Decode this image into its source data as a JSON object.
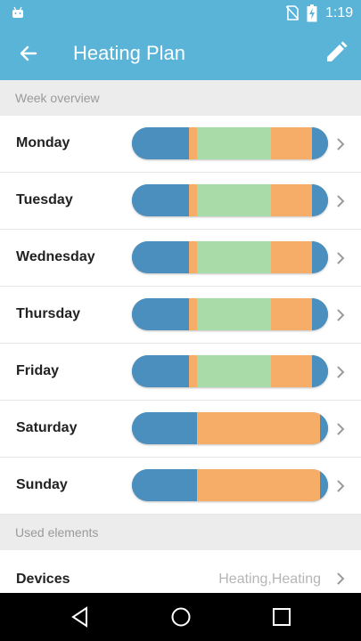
{
  "status_bar": {
    "time": "1:19",
    "icons": [
      "android-icon",
      "no-sim-icon",
      "battery-charging-icon"
    ]
  },
  "app_bar": {
    "title": "Heating Plan",
    "back_icon": "arrow-back-icon",
    "edit_icon": "pencil-icon",
    "color": "#5ab4d8"
  },
  "week_overview": {
    "header": "Week overview",
    "days": [
      {
        "name": "Monday",
        "segments": [
          {
            "frac": 0.29,
            "color": "#4a8fbd"
          },
          {
            "frac": 0.04,
            "color": "#f5ad68"
          },
          {
            "frac": 0.38,
            "color": "#a8dba8"
          },
          {
            "frac": 0.21,
            "color": "#f5ad68"
          },
          {
            "frac": 0.08,
            "color": "#4a8fbd"
          }
        ]
      },
      {
        "name": "Tuesday",
        "segments": [
          {
            "frac": 0.29,
            "color": "#4a8fbd"
          },
          {
            "frac": 0.04,
            "color": "#f5ad68"
          },
          {
            "frac": 0.38,
            "color": "#a8dba8"
          },
          {
            "frac": 0.21,
            "color": "#f5ad68"
          },
          {
            "frac": 0.08,
            "color": "#4a8fbd"
          }
        ]
      },
      {
        "name": "Wednesday",
        "segments": [
          {
            "frac": 0.29,
            "color": "#4a8fbd"
          },
          {
            "frac": 0.04,
            "color": "#f5ad68"
          },
          {
            "frac": 0.38,
            "color": "#a8dba8"
          },
          {
            "frac": 0.21,
            "color": "#f5ad68"
          },
          {
            "frac": 0.08,
            "color": "#4a8fbd"
          }
        ]
      },
      {
        "name": "Thursday",
        "segments": [
          {
            "frac": 0.29,
            "color": "#4a8fbd"
          },
          {
            "frac": 0.04,
            "color": "#f5ad68"
          },
          {
            "frac": 0.38,
            "color": "#a8dba8"
          },
          {
            "frac": 0.21,
            "color": "#f5ad68"
          },
          {
            "frac": 0.08,
            "color": "#4a8fbd"
          }
        ]
      },
      {
        "name": "Friday",
        "segments": [
          {
            "frac": 0.29,
            "color": "#4a8fbd"
          },
          {
            "frac": 0.04,
            "color": "#f5ad68"
          },
          {
            "frac": 0.38,
            "color": "#a8dba8"
          },
          {
            "frac": 0.21,
            "color": "#f5ad68"
          },
          {
            "frac": 0.08,
            "color": "#4a8fbd"
          }
        ]
      },
      {
        "name": "Saturday",
        "segments": [
          {
            "frac": 0.33,
            "color": "#4a8fbd"
          },
          {
            "frac": 0.63,
            "color": "#f5ad68"
          },
          {
            "frac": 0.04,
            "color": "#4a8fbd"
          }
        ]
      },
      {
        "name": "Sunday",
        "segments": [
          {
            "frac": 0.33,
            "color": "#4a8fbd"
          },
          {
            "frac": 0.63,
            "color": "#f5ad68"
          },
          {
            "frac": 0.04,
            "color": "#4a8fbd"
          }
        ]
      }
    ]
  },
  "used_elements": {
    "header": "Used elements",
    "devices_label": "Devices",
    "devices_value": "Heating,Heating"
  },
  "nav": {
    "icons": [
      "nav-back-icon",
      "nav-home-icon",
      "nav-recents-icon"
    ]
  }
}
